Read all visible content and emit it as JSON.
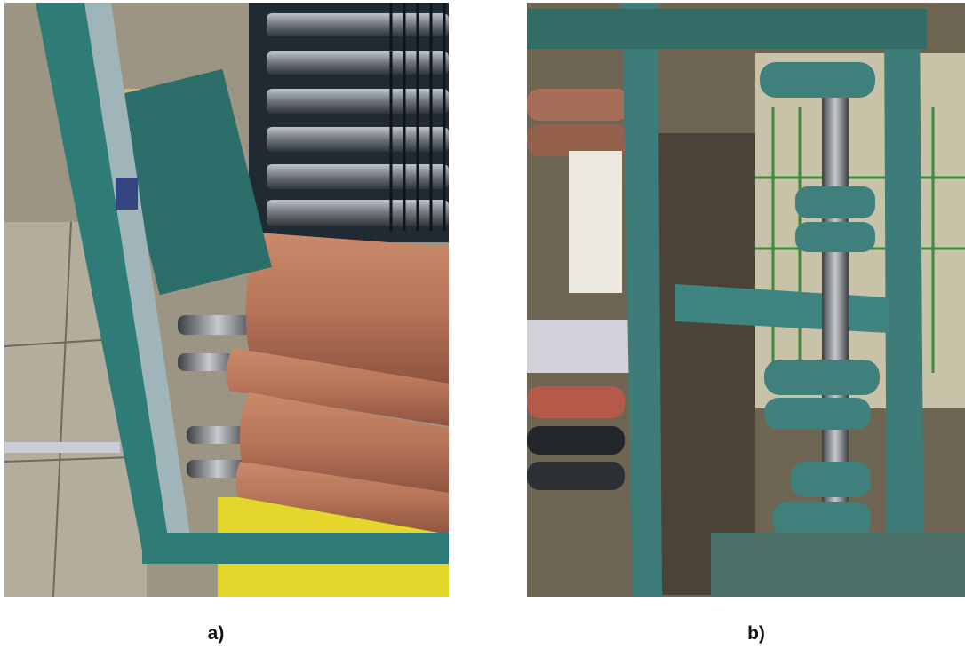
{
  "figure": {
    "panels": [
      {
        "caption": "a)"
      },
      {
        "caption": "b)"
      }
    ]
  }
}
